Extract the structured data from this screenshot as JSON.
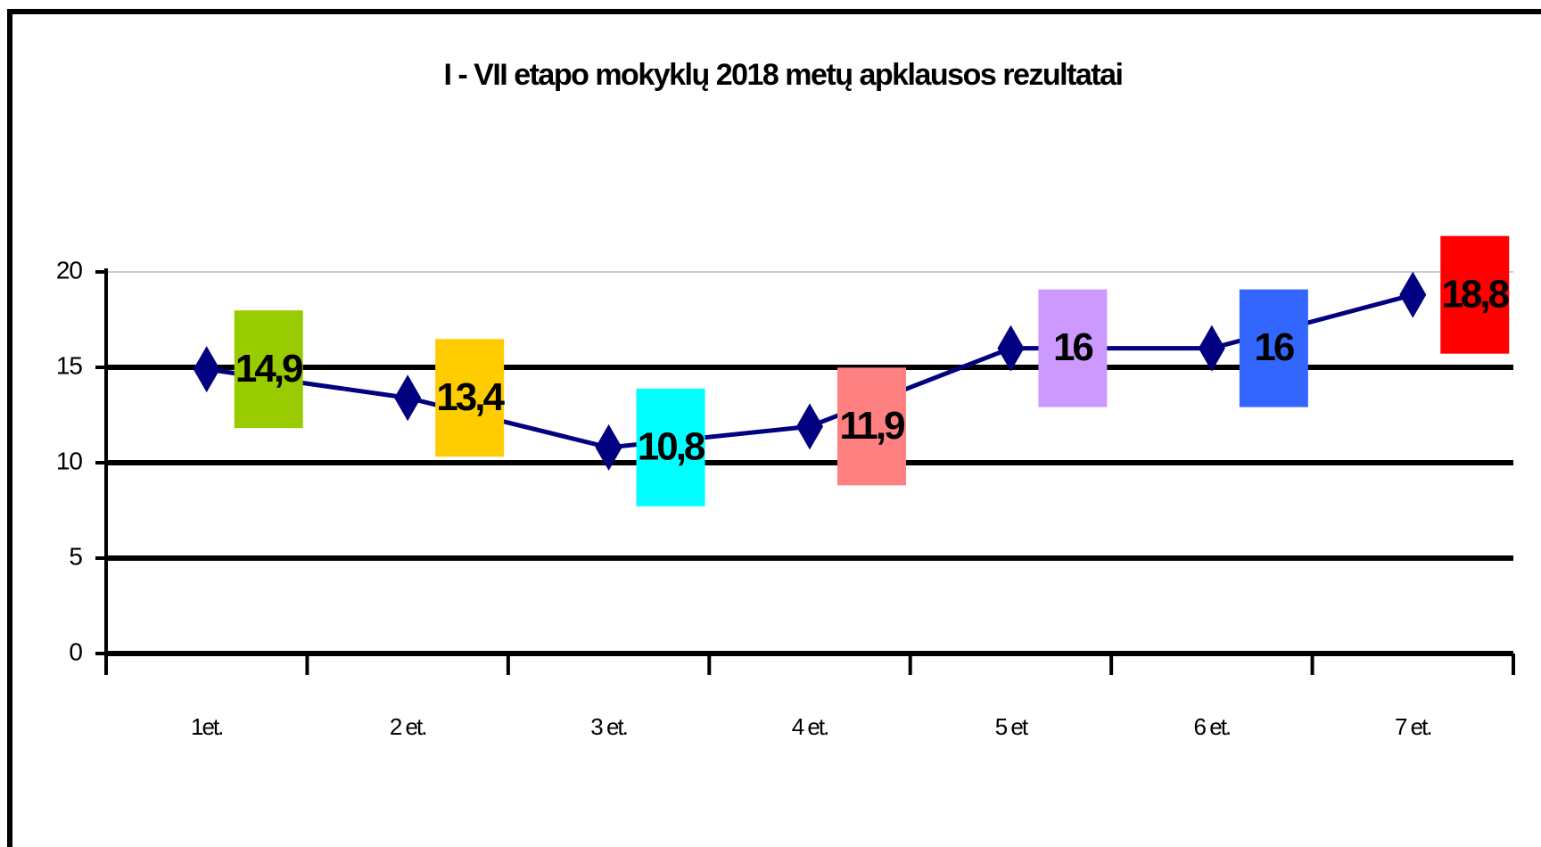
{
  "chart_data": {
    "type": "line",
    "title": "I - VII etapo mokyklų 2018 metų apklausos rezultatai",
    "categories": [
      "1et.",
      "2 et.",
      "3 et.",
      "4 et.",
      "5 et",
      "6 et.",
      "7 et."
    ],
    "values": [
      14.9,
      13.4,
      10.8,
      11.9,
      16,
      16,
      18.8
    ],
    "value_labels": [
      "14,9",
      "13,4",
      "10,8",
      "11,9",
      "16",
      "16",
      "18,8"
    ],
    "color": "#000080",
    "label_colors": [
      "#99cc00",
      "#ffcc00",
      "#00ffff",
      "#ff8080",
      "#cc99ff",
      "#3366ff",
      "#ff0000"
    ],
    "ylim": [
      0,
      20
    ],
    "yticks": [
      0,
      5,
      10,
      15,
      20
    ],
    "grid": true
  }
}
